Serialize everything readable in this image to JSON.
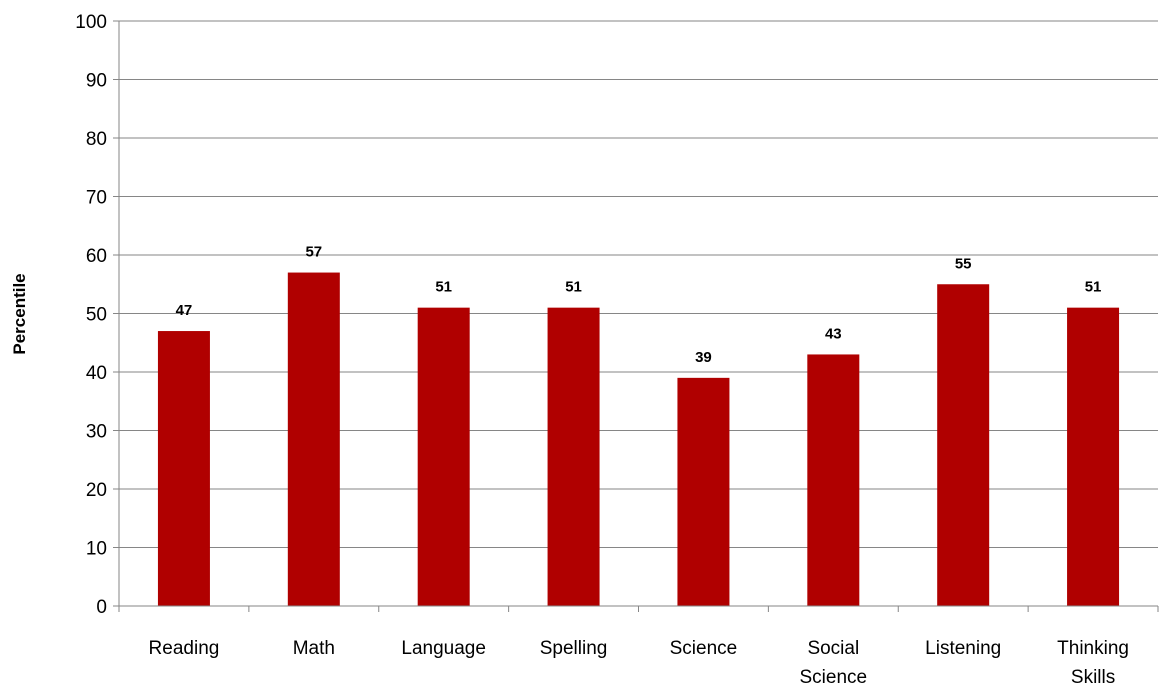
{
  "chart_data": {
    "type": "bar",
    "title": "",
    "xlabel": "",
    "ylabel": "Percentile",
    "ylim": [
      0,
      100
    ],
    "yticks": [
      0,
      10,
      20,
      30,
      40,
      50,
      60,
      70,
      80,
      90,
      100
    ],
    "grid": true,
    "legend": "none",
    "categories": [
      "Reading",
      "Math",
      "Language",
      "Spelling",
      "Science",
      "Social Science",
      "Listening",
      "Thinking Skills"
    ],
    "category_lines": [
      [
        "Reading"
      ],
      [
        "Math"
      ],
      [
        "Language"
      ],
      [
        "Spelling"
      ],
      [
        "Science"
      ],
      [
        "Social",
        "Science"
      ],
      [
        "Listening"
      ],
      [
        "Thinking",
        "Skills"
      ]
    ],
    "values": [
      47,
      57,
      51,
      51,
      39,
      43,
      55,
      51
    ],
    "data_labels": [
      "47",
      "57",
      "51",
      "51",
      "39",
      "43",
      "55",
      "51"
    ],
    "colors": {
      "bar": "#b00000",
      "grid": "#868686",
      "axis": "#868686"
    }
  }
}
